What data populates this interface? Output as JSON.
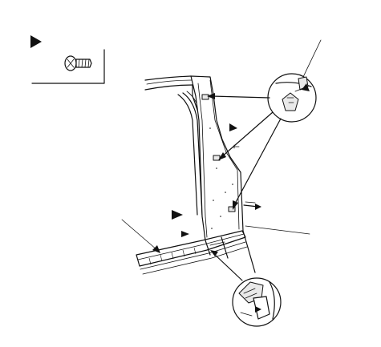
{
  "figure": {
    "legend": {
      "marker": "triangle-marker",
      "fastener_icon": "screw-icon"
    },
    "callouts": [
      "clip-detail-top",
      "clip-detail-bottom"
    ],
    "accent_colors": {
      "ink": "#111111",
      "paper": "#ffffff",
      "shade": "#e9e9e9"
    }
  }
}
